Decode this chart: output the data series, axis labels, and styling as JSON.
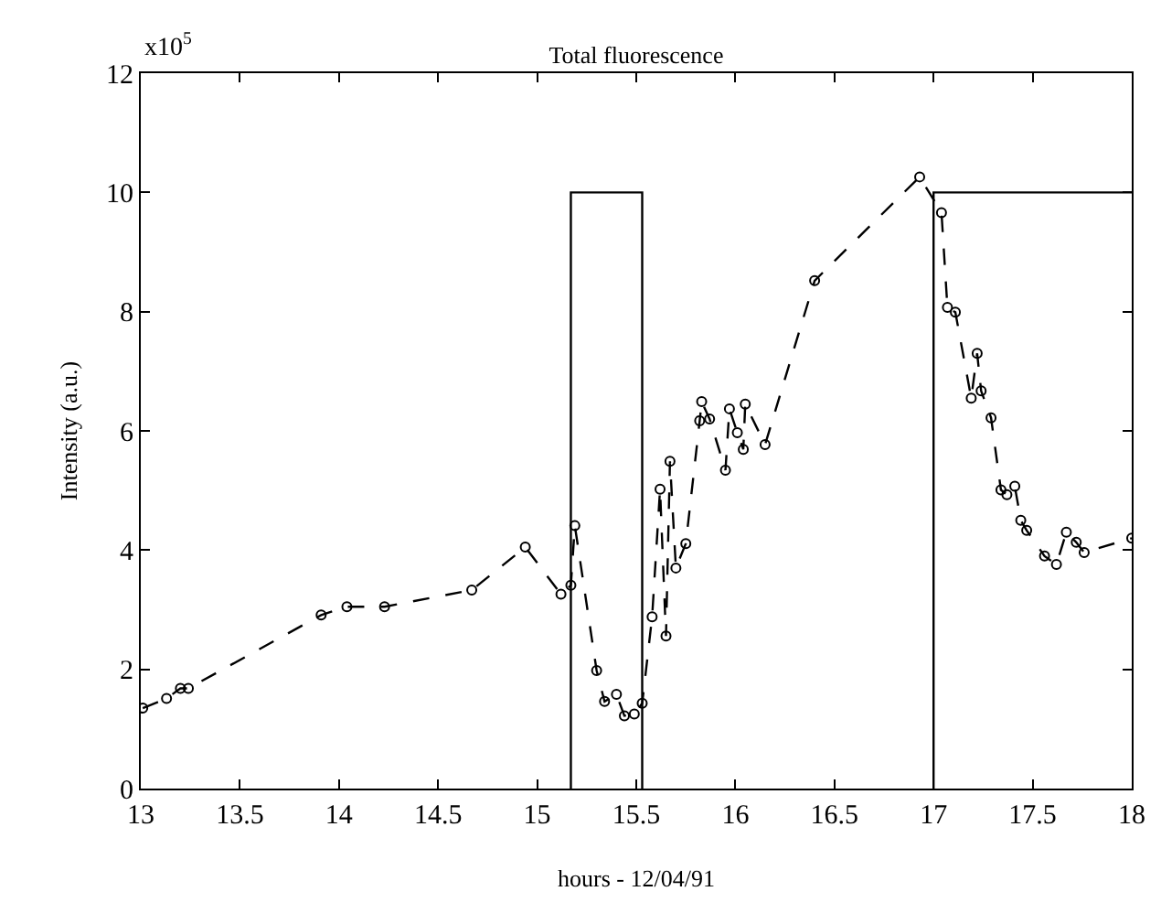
{
  "chart_data": {
    "type": "line",
    "title": "Total fluorescence",
    "xlabel": "hours - 12/04/91",
    "ylabel": "Intensity (a.u.)",
    "annotations": [
      "x10$^{5}$"
    ],
    "xlim": [
      13,
      18
    ],
    "xticks": [
      13,
      13.5,
      14,
      14.5,
      15,
      15.5,
      16,
      16.5,
      17,
      17.5,
      18
    ],
    "ylim": [
      0,
      12
    ],
    "yticks": [
      0,
      2,
      4,
      6,
      8,
      10,
      12
    ],
    "marker": "circle",
    "line_style": "dashed",
    "series": [
      {
        "color": "#000000",
        "x": [
          13.01,
          13.13,
          13.2,
          13.24,
          13.91,
          14.04,
          14.23,
          14.67,
          14.94,
          15.12,
          15.17,
          15.19,
          15.3,
          15.34,
          15.4,
          15.44,
          15.49,
          15.53,
          15.58,
          15.62,
          15.65,
          15.67,
          15.7,
          15.75,
          15.82,
          15.83,
          15.87,
          15.95,
          15.97,
          16.01,
          16.04,
          16.05,
          16.15,
          16.4,
          16.93,
          17.04,
          17.07,
          17.11,
          17.19,
          17.22,
          17.24,
          17.29,
          17.34,
          17.37,
          17.41,
          17.44,
          17.47,
          17.56,
          17.62,
          17.67,
          17.72,
          17.76,
          18.0
        ],
        "values": [
          1.35,
          1.51,
          1.68,
          1.68,
          2.91,
          3.05,
          3.05,
          3.33,
          4.05,
          3.26,
          3.41,
          4.41,
          1.98,
          1.46,
          1.58,
          1.22,
          1.25,
          1.43,
          2.88,
          5.02,
          2.56,
          5.49,
          3.7,
          4.11,
          6.17,
          6.49,
          6.2,
          5.34,
          6.37,
          5.97,
          5.69,
          6.45,
          5.77,
          8.52,
          10.26,
          9.66,
          8.07,
          7.99,
          6.55,
          7.3,
          6.67,
          6.22,
          5.01,
          4.93,
          5.07,
          4.5,
          4.33,
          3.9,
          3.76,
          4.3,
          4.13,
          3.96,
          4.2
        ]
      },
      {
        "color": "#000000",
        "marker": "none",
        "line_style": "solid",
        "x": [
          15.17,
          15.17,
          15.53,
          15.53
        ],
        "values": [
          0,
          10,
          10,
          0
        ]
      },
      {
        "color": "#000000",
        "marker": "none",
        "line_style": "solid",
        "x": [
          17.0,
          17.0,
          18.0
        ],
        "values": [
          0,
          10,
          10
        ]
      }
    ]
  }
}
